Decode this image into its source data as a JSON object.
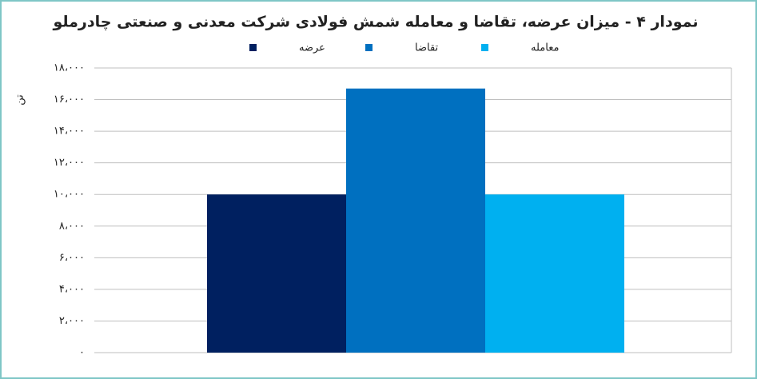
{
  "chart_data": {
    "type": "bar",
    "title": "نمودار ۴ - میزان عرضه، تقاضا و معامله شمش فولادی شرکت معدنی و صنعتی چادرملو",
    "y_label": "تن",
    "categories": [
      null
    ],
    "series": [
      {
        "name": "عرضه",
        "color": "#002060",
        "values": [
          10000
        ]
      },
      {
        "name": "تقاضا",
        "color": "#0070c0",
        "values": [
          16700
        ]
      },
      {
        "name": "معامله",
        "color": "#00b0f0",
        "values": [
          10000
        ]
      }
    ],
    "ylim": [
      0,
      18000
    ],
    "yticks": [
      {
        "value": 0,
        "label": "۰"
      },
      {
        "value": 2000,
        "label": "۲،۰۰۰"
      },
      {
        "value": 4000,
        "label": "۴،۰۰۰"
      },
      {
        "value": 6000,
        "label": "۶،۰۰۰"
      },
      {
        "value": 8000,
        "label": "۸،۰۰۰"
      },
      {
        "value": 10000,
        "label": "۱۰،۰۰۰"
      },
      {
        "value": 12000,
        "label": "۱۲،۰۰۰"
      },
      {
        "value": 14000,
        "label": "۱۴،۰۰۰"
      },
      {
        "value": 16000,
        "label": "۱۶،۰۰۰"
      },
      {
        "value": 18000,
        "label": "۱۸،۰۰۰"
      }
    ],
    "grid": true,
    "legend": "top"
  }
}
